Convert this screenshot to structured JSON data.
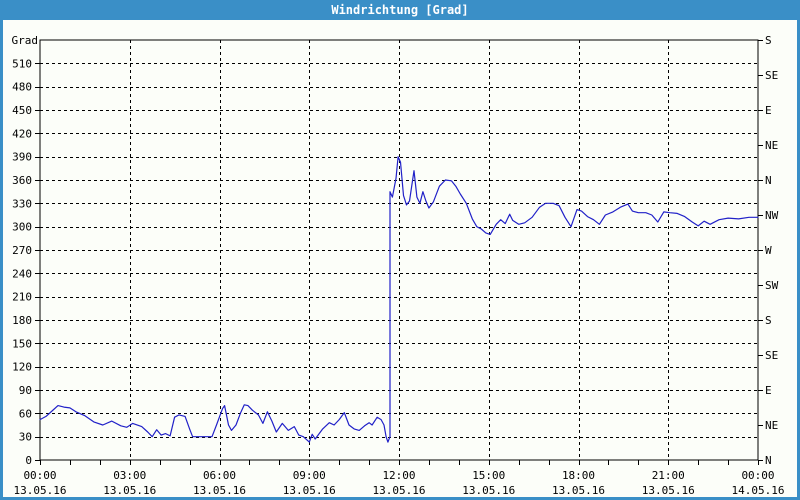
{
  "window": {
    "title": "Windrichtung [Grad]"
  },
  "colors": {
    "frame_blue": "#3A8FC7",
    "title_text": "#FFFFFF",
    "plot_bg": "#FCFEF9",
    "grid": "#000000",
    "axis": "#000000",
    "line_blue": "#2121C8"
  },
  "chart_data": {
    "type": "line",
    "title": "Windrichtung [Grad]",
    "ylabel_left": "Grad",
    "ylim": [
      0,
      540
    ],
    "xlim_hours": [
      0,
      24
    ],
    "grid": "dashed",
    "legend": "none",
    "y_left_ticks": [
      0,
      30,
      60,
      90,
      120,
      150,
      180,
      210,
      240,
      270,
      300,
      330,
      360,
      390,
      420,
      450,
      480,
      510
    ],
    "y_right_ticks": [
      {
        "value": 0,
        "label": "N"
      },
      {
        "value": 45,
        "label": "NE"
      },
      {
        "value": 90,
        "label": "E"
      },
      {
        "value": 135,
        "label": "SE"
      },
      {
        "value": 180,
        "label": "S"
      },
      {
        "value": 225,
        "label": "SW"
      },
      {
        "value": 270,
        "label": "W"
      },
      {
        "value": 315,
        "label": "NW"
      },
      {
        "value": 360,
        "label": "N"
      },
      {
        "value": 405,
        "label": "NE"
      },
      {
        "value": 450,
        "label": "E"
      },
      {
        "value": 495,
        "label": "SE"
      },
      {
        "value": 540,
        "label": "S"
      }
    ],
    "x_ticks": [
      {
        "hour": 0,
        "time": "00:00",
        "date": "13.05.16"
      },
      {
        "hour": 3,
        "time": "03:00",
        "date": "13.05.16"
      },
      {
        "hour": 6,
        "time": "06:00",
        "date": "13.05.16"
      },
      {
        "hour": 9,
        "time": "09:00",
        "date": "13.05.16"
      },
      {
        "hour": 12,
        "time": "12:00",
        "date": "13.05.16"
      },
      {
        "hour": 15,
        "time": "15:00",
        "date": "13.05.16"
      },
      {
        "hour": 18,
        "time": "18:00",
        "date": "13.05.16"
      },
      {
        "hour": 21,
        "time": "21:00",
        "date": "13.05.16"
      },
      {
        "hour": 24,
        "time": "00:00",
        "date": "14.05.16"
      }
    ],
    "x_minor_tick_hours": 1,
    "series": [
      {
        "name": "Windrichtung",
        "color": "#2121C8",
        "points": [
          [
            0.0,
            52
          ],
          [
            0.2,
            56
          ],
          [
            0.4,
            63
          ],
          [
            0.6,
            70
          ],
          [
            0.8,
            68
          ],
          [
            1.0,
            67
          ],
          [
            1.2,
            62
          ],
          [
            1.5,
            57
          ],
          [
            1.8,
            49
          ],
          [
            2.1,
            45
          ],
          [
            2.4,
            50
          ],
          [
            2.7,
            44
          ],
          [
            2.9,
            42
          ],
          [
            3.1,
            47
          ],
          [
            3.4,
            43
          ],
          [
            3.6,
            36
          ],
          [
            3.75,
            30
          ],
          [
            3.9,
            39
          ],
          [
            4.05,
            32
          ],
          [
            4.2,
            34
          ],
          [
            4.35,
            31
          ],
          [
            4.5,
            55
          ],
          [
            4.65,
            58
          ],
          [
            4.85,
            56
          ],
          [
            5.0,
            40
          ],
          [
            5.1,
            30
          ],
          [
            5.4,
            30
          ],
          [
            5.75,
            30
          ],
          [
            5.9,
            45
          ],
          [
            6.1,
            66
          ],
          [
            6.17,
            70
          ],
          [
            6.3,
            45
          ],
          [
            6.4,
            38
          ],
          [
            6.55,
            45
          ],
          [
            6.7,
            60
          ],
          [
            6.83,
            71
          ],
          [
            6.95,
            70
          ],
          [
            7.1,
            64
          ],
          [
            7.3,
            58
          ],
          [
            7.45,
            47
          ],
          [
            7.6,
            62
          ],
          [
            7.75,
            50
          ],
          [
            7.9,
            36
          ],
          [
            8.1,
            47
          ],
          [
            8.3,
            38
          ],
          [
            8.5,
            43
          ],
          [
            8.65,
            32
          ],
          [
            8.8,
            30
          ],
          [
            9.0,
            23
          ],
          [
            9.1,
            33
          ],
          [
            9.2,
            27
          ],
          [
            9.45,
            40
          ],
          [
            9.67,
            48
          ],
          [
            9.83,
            45
          ],
          [
            10.0,
            52
          ],
          [
            10.17,
            61
          ],
          [
            10.33,
            45
          ],
          [
            10.5,
            40
          ],
          [
            10.67,
            38
          ],
          [
            10.85,
            44
          ],
          [
            11.0,
            48
          ],
          [
            11.1,
            45
          ],
          [
            11.27,
            55
          ],
          [
            11.4,
            52
          ],
          [
            11.5,
            45
          ],
          [
            11.57,
            30
          ],
          [
            11.63,
            23
          ],
          [
            11.68,
            28
          ],
          [
            11.7,
            30
          ],
          [
            11.7,
            345
          ],
          [
            11.78,
            338
          ],
          [
            11.9,
            362
          ],
          [
            11.97,
            390
          ],
          [
            12.05,
            383
          ],
          [
            12.15,
            340
          ],
          [
            12.25,
            328
          ],
          [
            12.35,
            333
          ],
          [
            12.5,
            372
          ],
          [
            12.6,
            338
          ],
          [
            12.7,
            330
          ],
          [
            12.8,
            345
          ],
          [
            12.9,
            333
          ],
          [
            13.0,
            324
          ],
          [
            13.15,
            332
          ],
          [
            13.35,
            352
          ],
          [
            13.55,
            360
          ],
          [
            13.75,
            359
          ],
          [
            13.9,
            352
          ],
          [
            14.05,
            342
          ],
          [
            14.25,
            330
          ],
          [
            14.45,
            310
          ],
          [
            14.6,
            300
          ],
          [
            14.75,
            297
          ],
          [
            14.9,
            292
          ],
          [
            15.05,
            290
          ],
          [
            15.25,
            303
          ],
          [
            15.4,
            309
          ],
          [
            15.55,
            304
          ],
          [
            15.7,
            316
          ],
          [
            15.8,
            308
          ],
          [
            16.0,
            303
          ],
          [
            16.2,
            305
          ],
          [
            16.45,
            312
          ],
          [
            16.7,
            325
          ],
          [
            16.9,
            330
          ],
          [
            17.15,
            330
          ],
          [
            17.35,
            327
          ],
          [
            17.55,
            312
          ],
          [
            17.75,
            300
          ],
          [
            17.95,
            322
          ],
          [
            18.1,
            320
          ],
          [
            18.3,
            313
          ],
          [
            18.5,
            309
          ],
          [
            18.7,
            303
          ],
          [
            18.9,
            315
          ],
          [
            19.15,
            319
          ],
          [
            19.4,
            325
          ],
          [
            19.65,
            329
          ],
          [
            19.8,
            320
          ],
          [
            20.0,
            318
          ],
          [
            20.25,
            318
          ],
          [
            20.45,
            315
          ],
          [
            20.65,
            306
          ],
          [
            20.85,
            319
          ],
          [
            21.05,
            318
          ],
          [
            21.3,
            317
          ],
          [
            21.55,
            313
          ],
          [
            21.8,
            306
          ],
          [
            22.0,
            301
          ],
          [
            22.2,
            307
          ],
          [
            22.4,
            303
          ],
          [
            22.7,
            309
          ],
          [
            23.0,
            311
          ],
          [
            23.35,
            310
          ],
          [
            23.7,
            312
          ],
          [
            24.0,
            312
          ]
        ]
      }
    ]
  }
}
